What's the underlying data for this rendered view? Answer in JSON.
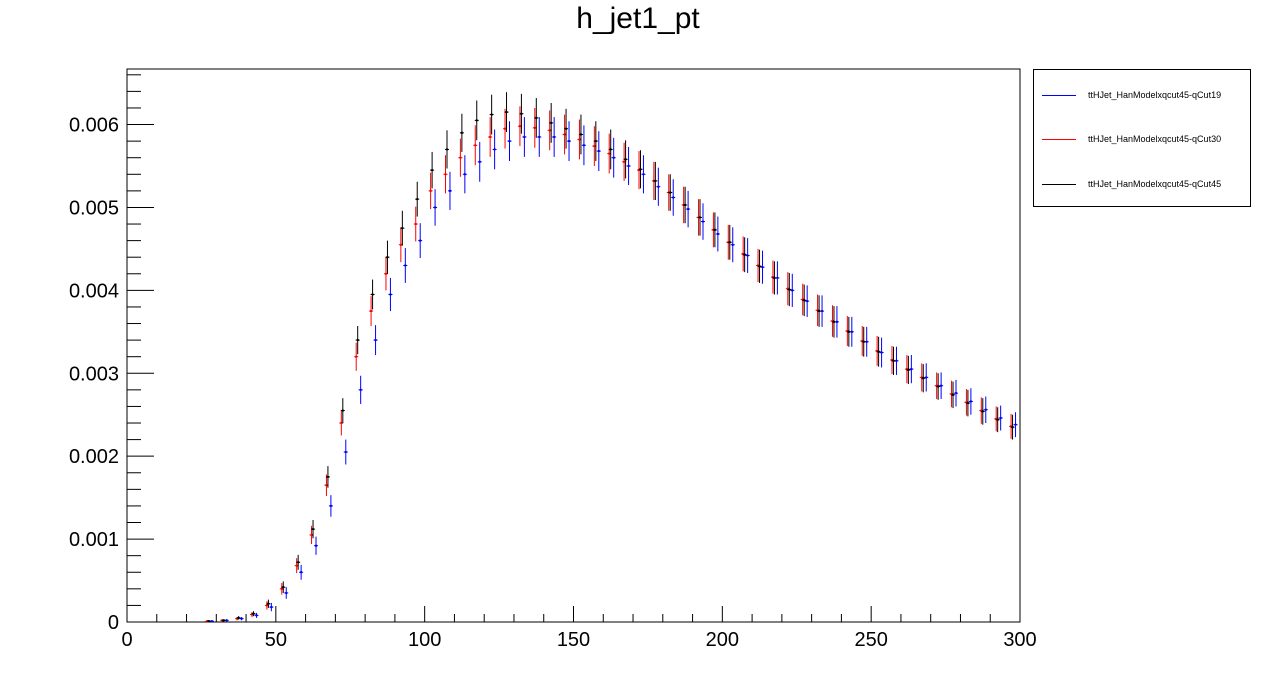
{
  "title": "h_jet1_pt",
  "chart_data": {
    "type": "scatter",
    "title": "h_jet1_pt",
    "xlabel": "",
    "ylabel": "",
    "xlim": [
      0,
      300
    ],
    "ylim": [
      0,
      0.00667
    ],
    "x_ticks": [
      0,
      50,
      100,
      150,
      200,
      250,
      300
    ],
    "x_tick_labels": [
      "0",
      "50",
      "100",
      "150",
      "200",
      "250",
      "300"
    ],
    "y_ticks": [
      0,
      0.001,
      0.002,
      0.003,
      0.004,
      0.005,
      0.006
    ],
    "y_tick_labels": [
      "0",
      "0.001",
      "0.002",
      "0.003",
      "0.004",
      "0.005",
      "0.006"
    ],
    "legend_position": "right-outside-top",
    "x": [
      27.5,
      32.5,
      37.5,
      42.5,
      47.5,
      52.5,
      57.5,
      62.5,
      67.5,
      72.5,
      77.5,
      82.5,
      87.5,
      92.5,
      97.5,
      102.5,
      107.5,
      112.5,
      117.5,
      122.5,
      127.5,
      132.5,
      137.5,
      142.5,
      147.5,
      152.5,
      157.5,
      162.5,
      167.5,
      172.5,
      177.5,
      182.5,
      187.5,
      192.5,
      197.5,
      202.5,
      207.5,
      212.5,
      217.5,
      222.5,
      227.5,
      232.5,
      237.5,
      242.5,
      247.5,
      252.5,
      257.5,
      262.5,
      267.5,
      272.5,
      277.5,
      282.5,
      287.5,
      292.5,
      297.5
    ],
    "series": [
      {
        "name": "ttHJet_HanModelxqcut45-qCut19",
        "color": "#0000ff",
        "values": [
          1e-05,
          2e-05,
          4e-05,
          8e-05,
          0.00018,
          0.00035,
          0.0006,
          0.00092,
          0.0014,
          0.00205,
          0.0028,
          0.0034,
          0.00395,
          0.0043,
          0.0046,
          0.005,
          0.0052,
          0.0054,
          0.00555,
          0.0057,
          0.0058,
          0.00585,
          0.00585,
          0.00585,
          0.0058,
          0.00575,
          0.00568,
          0.0056,
          0.0055,
          0.0054,
          0.00525,
          0.00512,
          0.00498,
          0.00483,
          0.00468,
          0.00455,
          0.00442,
          0.00428,
          0.00415,
          0.004,
          0.00387,
          0.00375,
          0.00362,
          0.0035,
          0.00338,
          0.00325,
          0.00315,
          0.00305,
          0.00295,
          0.00285,
          0.00276,
          0.00266,
          0.00256,
          0.00246,
          0.00238
        ],
        "errors": [
          1e-05,
          1e-05,
          2e-05,
          3e-05,
          5e-05,
          7e-05,
          9e-05,
          0.00011,
          0.00013,
          0.00015,
          0.00017,
          0.00018,
          0.0002,
          0.00021,
          0.00021,
          0.00022,
          0.00023,
          0.00023,
          0.00024,
          0.00024,
          0.00024,
          0.00024,
          0.00024,
          0.00024,
          0.00024,
          0.00024,
          0.00024,
          0.00024,
          0.00023,
          0.00023,
          0.00023,
          0.00022,
          0.00022,
          0.00022,
          0.00021,
          0.00021,
          0.00021,
          0.0002,
          0.0002,
          0.0002,
          0.00019,
          0.00019,
          0.00019,
          0.00018,
          0.00018,
          0.00018,
          0.00017,
          0.00017,
          0.00017,
          0.00016,
          0.00016,
          0.00016,
          0.00016,
          0.00015,
          0.00015
        ]
      },
      {
        "name": "ttHJet_HanModelxqcut45-qCut30",
        "color": "#ff0000",
        "values": [
          1e-05,
          2e-05,
          4e-05,
          9e-05,
          0.0002,
          0.0004,
          0.00068,
          0.00105,
          0.00165,
          0.0024,
          0.0032,
          0.00375,
          0.0042,
          0.00455,
          0.0048,
          0.0052,
          0.0054,
          0.0056,
          0.00575,
          0.00585,
          0.00595,
          0.00598,
          0.00596,
          0.00593,
          0.00588,
          0.00582,
          0.00574,
          0.00565,
          0.00555,
          0.00545,
          0.00532,
          0.00518,
          0.00503,
          0.00488,
          0.00473,
          0.00458,
          0.00444,
          0.0043,
          0.00416,
          0.00402,
          0.00389,
          0.00376,
          0.00363,
          0.00351,
          0.00339,
          0.00327,
          0.00316,
          0.00305,
          0.00295,
          0.00285,
          0.00275,
          0.00265,
          0.00255,
          0.00245,
          0.00236
        ],
        "errors": [
          1e-05,
          1e-05,
          2e-05,
          3e-05,
          5e-05,
          7e-05,
          9e-05,
          0.00011,
          0.00013,
          0.00015,
          0.00017,
          0.00018,
          0.0002,
          0.00021,
          0.00021,
          0.00022,
          0.00023,
          0.00023,
          0.00024,
          0.00024,
          0.00024,
          0.00024,
          0.00024,
          0.00024,
          0.00024,
          0.00024,
          0.00024,
          0.00024,
          0.00023,
          0.00023,
          0.00023,
          0.00022,
          0.00022,
          0.00022,
          0.00021,
          0.00021,
          0.00021,
          0.0002,
          0.0002,
          0.0002,
          0.00019,
          0.00019,
          0.00019,
          0.00018,
          0.00018,
          0.00018,
          0.00017,
          0.00017,
          0.00017,
          0.00016,
          0.00016,
          0.00016,
          0.00016,
          0.00015,
          0.00015
        ]
      },
      {
        "name": "ttHJet_HanModelxqcut45-qCut45",
        "color": "#000000",
        "values": [
          1e-05,
          2e-05,
          5e-05,
          0.0001,
          0.00022,
          0.00042,
          0.00072,
          0.00112,
          0.00175,
          0.00255,
          0.0034,
          0.00395,
          0.0044,
          0.00475,
          0.0051,
          0.00545,
          0.0057,
          0.0059,
          0.00605,
          0.00612,
          0.00615,
          0.00613,
          0.00608,
          0.00602,
          0.00595,
          0.00588,
          0.0058,
          0.0057,
          0.00558,
          0.00546,
          0.00532,
          0.00518,
          0.00503,
          0.00488,
          0.00473,
          0.00458,
          0.00443,
          0.00429,
          0.00415,
          0.00401,
          0.00388,
          0.00375,
          0.00362,
          0.0035,
          0.00338,
          0.00326,
          0.00315,
          0.00304,
          0.00294,
          0.00284,
          0.00274,
          0.00264,
          0.00254,
          0.00244,
          0.00235
        ],
        "errors": [
          1e-05,
          1e-05,
          2e-05,
          3e-05,
          5e-05,
          7e-05,
          9e-05,
          0.00011,
          0.00013,
          0.00015,
          0.00017,
          0.00018,
          0.0002,
          0.00021,
          0.00021,
          0.00022,
          0.00023,
          0.00023,
          0.00024,
          0.00024,
          0.00024,
          0.00024,
          0.00024,
          0.00024,
          0.00024,
          0.00024,
          0.00024,
          0.00024,
          0.00023,
          0.00023,
          0.00023,
          0.00022,
          0.00022,
          0.00022,
          0.00021,
          0.00021,
          0.00021,
          0.0002,
          0.0002,
          0.0002,
          0.00019,
          0.00019,
          0.00019,
          0.00018,
          0.00018,
          0.00018,
          0.00017,
          0.00017,
          0.00017,
          0.00016,
          0.00016,
          0.00016,
          0.00016,
          0.00015,
          0.00015
        ]
      }
    ]
  }
}
